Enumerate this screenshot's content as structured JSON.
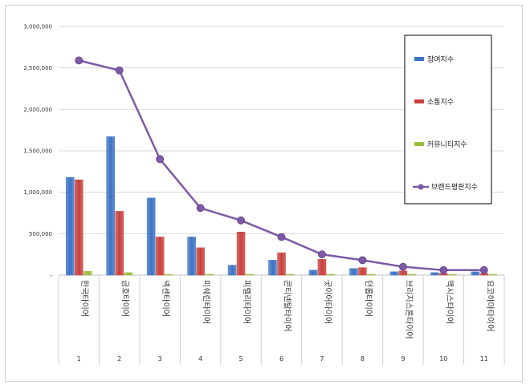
{
  "chart_data": {
    "type": "bar",
    "categories": [
      "한국타이어",
      "금호타이어",
      "넥센타이어",
      "미쉐린타이어",
      "피렐리타이어",
      "콘티넨탈타이어",
      "굿이어타이어",
      "던롭타이어",
      "브리지스톤타이어",
      "맥시스타이어",
      "요코하마타이어"
    ],
    "indices": [
      "1",
      "2",
      "3",
      "4",
      "5",
      "6",
      "7",
      "8",
      "9",
      "10",
      "11"
    ],
    "series": [
      {
        "name": "참여지수",
        "type": "bar",
        "color": "#3b73c4",
        "values": [
          1180000,
          1670000,
          930000,
          460000,
          120000,
          180000,
          60000,
          80000,
          40000,
          30000,
          40000
        ]
      },
      {
        "name": "소통지수",
        "type": "bar",
        "color": "#c8403c",
        "values": [
          1150000,
          770000,
          460000,
          330000,
          520000,
          270000,
          190000,
          90000,
          50000,
          20000,
          20000
        ]
      },
      {
        "name": "커뮤니티지수",
        "type": "bar",
        "color": "#9bbb3b",
        "values": [
          45000,
          30000,
          5000,
          10000,
          5000,
          8000,
          5000,
          5000,
          5000,
          3000,
          3000
        ]
      },
      {
        "name": "브랜드평판지수",
        "type": "line",
        "color": "#7d5aa6",
        "values": [
          2590000,
          2470000,
          1400000,
          810000,
          660000,
          460000,
          250000,
          180000,
          100000,
          60000,
          60000
        ]
      }
    ],
    "y_ticks": [
      "3,000,000",
      "2,500,000",
      "2,000,000",
      "1,500,000",
      "1,000,000",
      "500,000",
      "-"
    ],
    "ylim": [
      0,
      3000000
    ],
    "legend_position": "top-right",
    "grid": true
  }
}
